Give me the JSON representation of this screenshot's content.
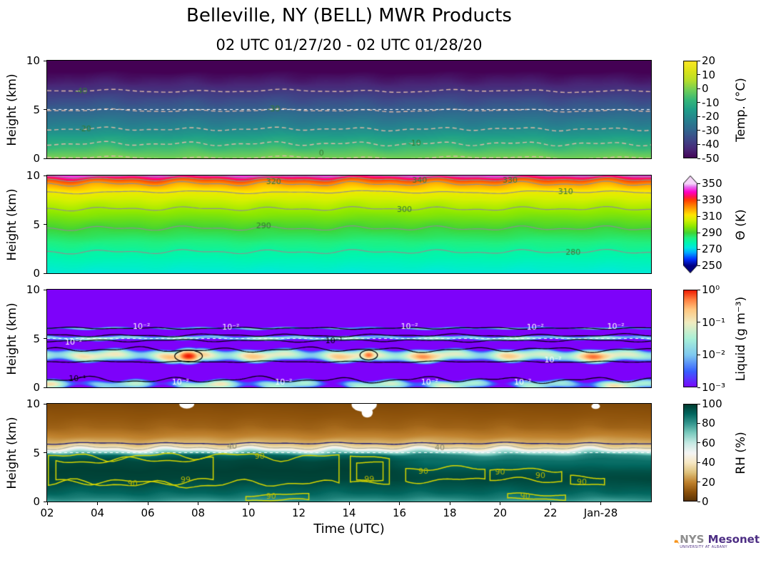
{
  "header": {
    "title": "Belleville, NY (BELL) MWR Products",
    "subtitle": "02 UTC 01/27/20 - 02 UTC 01/28/20"
  },
  "logo": {
    "nys": "NYS",
    "mesonet": "Mesonet",
    "sub": "UNIVERSITY AT ALBANY"
  },
  "chart_data": {
    "type": "heatmap",
    "x_label": "Time (UTC)",
    "x_range_hours": [
      2,
      26
    ],
    "x_ticks": [
      [
        2,
        "02"
      ],
      [
        4,
        "04"
      ],
      [
        6,
        "06"
      ],
      [
        8,
        "08"
      ],
      [
        10,
        "10"
      ],
      [
        12,
        "12"
      ],
      [
        14,
        "14"
      ],
      [
        16,
        "16"
      ],
      [
        18,
        "18"
      ],
      [
        20,
        "20"
      ],
      [
        22,
        "22"
      ],
      [
        24,
        "Jan-28"
      ]
    ],
    "y_label": "Height (km)",
    "y_range_km": [
      0,
      10
    ],
    "y_ticks": [
      [
        0,
        "0"
      ],
      [
        5,
        "5"
      ],
      [
        10,
        "10"
      ]
    ],
    "panels": [
      {
        "id": "temp",
        "kind": "profile",
        "seed": 1.3,
        "profile": [
          [
            0,
            0.5
          ],
          [
            1.5,
            -10
          ],
          [
            3.0,
            -20
          ],
          [
            4.9,
            -30
          ],
          [
            6.9,
            -40
          ],
          [
            8.5,
            -48
          ],
          [
            10,
            -56
          ]
        ],
        "colormap": [
          [
            -50,
            "#440154"
          ],
          [
            -43,
            "#482878"
          ],
          [
            -36,
            "#3e4989"
          ],
          [
            -29,
            "#31688e"
          ],
          [
            -22,
            "#26828e"
          ],
          [
            -15,
            "#1f9e89"
          ],
          [
            -8,
            "#35b779"
          ],
          [
            -1,
            "#6ece58"
          ],
          [
            6,
            "#b5de2b"
          ],
          [
            13,
            "#dce319"
          ],
          [
            20,
            "#fde725"
          ]
        ],
        "contours": {
          "values": [
            0,
            -10,
            -20,
            -30,
            -40
          ],
          "style": "dashed",
          "color": "#ddb8a8",
          "width": 1.4,
          "label_color": "#357a32",
          "labels": [
            {
              "v": -40,
              "t": 3.35
            },
            {
              "v": -30,
              "t": 11.0
            },
            {
              "v": -20,
              "t": 3.5
            },
            {
              "v": -10,
              "t": 16.6
            },
            {
              "v": 0,
              "t": 12.9
            }
          ]
        },
        "dashed5": true,
        "colorbar": {
          "label": "Temp. (°C)",
          "min": -50,
          "max": 20,
          "ticks": [
            [
              20,
              "20"
            ],
            [
              10,
              "10"
            ],
            [
              0,
              "0"
            ],
            [
              -10,
              "-10"
            ],
            [
              -20,
              "-20"
            ],
            [
              -30,
              "-30"
            ],
            [
              -40,
              "-40"
            ],
            [
              -50,
              "-50"
            ]
          ]
        }
      },
      {
        "id": "theta",
        "kind": "profile",
        "seed": 4.1,
        "profile": [
          [
            0,
            273
          ],
          [
            2.2,
            280
          ],
          [
            4.6,
            290
          ],
          [
            6.6,
            300
          ],
          [
            8.3,
            310
          ],
          [
            9.15,
            320
          ],
          [
            9.6,
            330
          ],
          [
            9.95,
            341
          ],
          [
            10,
            343
          ]
        ],
        "colormap": [
          [
            250,
            "#000080"
          ],
          [
            258,
            "#0030ff"
          ],
          [
            266,
            "#00aaff"
          ],
          [
            272,
            "#00e8e0"
          ],
          [
            278,
            "#00f5b0"
          ],
          [
            284,
            "#20f080"
          ],
          [
            290,
            "#3fd435"
          ],
          [
            298,
            "#8ee800"
          ],
          [
            306,
            "#d6f000"
          ],
          [
            312,
            "#ffe400"
          ],
          [
            318,
            "#ffae00"
          ],
          [
            324,
            "#ff7800"
          ],
          [
            330,
            "#ff3c00"
          ],
          [
            334,
            "#ff1450"
          ],
          [
            340,
            "#ff00c8"
          ],
          [
            346,
            "#e86cf0"
          ],
          [
            350,
            "#f5d4f8"
          ]
        ],
        "contours": {
          "values": [
            280,
            290,
            300,
            310,
            320,
            330,
            340
          ],
          "style": "solid",
          "color": "#8f8f8f",
          "width": 1.2,
          "label_color": "#357a32",
          "labels": [
            {
              "v": 280,
              "t": 22.9
            },
            {
              "v": 290,
              "t": 10.6
            },
            {
              "v": 300,
              "t": 16.2
            },
            {
              "v": 310,
              "t": 22.6
            },
            {
              "v": 320,
              "t": 11.0
            },
            {
              "v": 330,
              "t": 20.4
            },
            {
              "v": 340,
              "t": 16.8
            }
          ]
        },
        "dashed5": false,
        "colorbar": {
          "label": "Θ (K)",
          "min": 250,
          "max": 350,
          "extend_top": true,
          "extend_bottom": true,
          "ticks": [
            [
              350,
              "350"
            ],
            [
              330,
              "330"
            ],
            [
              310,
              "310"
            ],
            [
              290,
              "290"
            ],
            [
              270,
              "270"
            ],
            [
              250,
              "250"
            ]
          ]
        }
      },
      {
        "id": "liquid",
        "kind": "liquid",
        "base": -3,
        "bands": [
          {
            "h": 5.05,
            "hw": 0.22,
            "peak": -1.8,
            "seed": 11,
            "pwob": 0.25,
            "hwob": 0.07
          },
          {
            "h": 3.25,
            "hw": 0.5,
            "peak": -1.1,
            "seed": 23,
            "pwob": 0.45,
            "hwob": 0.1
          },
          {
            "h": 0.3,
            "hw": 0.42,
            "peak": -1.8,
            "seed": 37,
            "pwob": 0.6,
            "hwob": 0.1
          },
          {
            "h": 6.05,
            "hw": 0.13,
            "peak": -2.2,
            "seed": 41,
            "pwob": 0.3,
            "hwob": 0.05
          }
        ],
        "blobs": [
          {
            "t": 7.62,
            "h": 3.2,
            "rt": 0.45,
            "rh": 0.55,
            "peak": 0.0
          },
          {
            "t": 14.78,
            "h": 3.3,
            "rt": 0.28,
            "rh": 0.45,
            "peak": -0.25
          }
        ],
        "colormap": [
          [
            -3,
            "#7d02fa"
          ],
          [
            -2.5,
            "#3860ff"
          ],
          [
            -2,
            "#7ec8f0"
          ],
          [
            -1.5,
            "#a8f0d8"
          ],
          [
            -1,
            "#f0ecc0"
          ],
          [
            -0.6,
            "#ffc880"
          ],
          [
            -0.3,
            "#ff8040"
          ],
          [
            0,
            "#f01800"
          ]
        ],
        "lines": [
          {
            "h": 6.05,
            "amp": 0.06,
            "seed": 4.2
          },
          {
            "h": 5.32,
            "amp": 0.09,
            "seed": 5.1
          },
          {
            "h": 4.78,
            "amp": 0.08,
            "seed": 6.3
          },
          {
            "h": 3.86,
            "amp": 0.16,
            "seed": 7.7
          },
          {
            "h": 2.62,
            "amp": 0.05,
            "seed": 8.9
          },
          {
            "h": 0.78,
            "amp": 0.2,
            "seed": 9.4
          }
        ],
        "rings": [
          {
            "t": 7.62,
            "h": 3.2,
            "rt": 0.55,
            "rh": 0.6
          },
          {
            "t": 14.78,
            "h": 3.3,
            "rt": 0.35,
            "rh": 0.5
          }
        ],
        "line_color": "#000000",
        "dashed5": true,
        "labels": [
          {
            "t": 3.05,
            "h": 4.62,
            "text": "10⁻²",
            "color": "#ffffff"
          },
          {
            "t": 5.75,
            "h": 6.18,
            "text": "10⁻²",
            "color": "#ffffff"
          },
          {
            "t": 9.3,
            "h": 6.1,
            "text": "10⁻²",
            "color": "#ffffff"
          },
          {
            "t": 16.4,
            "h": 6.18,
            "text": "10⁻²",
            "color": "#ffffff"
          },
          {
            "t": 21.4,
            "h": 6.1,
            "text": "10⁻²",
            "color": "#ffffff"
          },
          {
            "t": 24.6,
            "h": 6.2,
            "text": "10⁻²",
            "color": "#ffffff"
          },
          {
            "t": 22.1,
            "h": 2.78,
            "text": "10⁻²",
            "color": "#ffffff"
          },
          {
            "t": 3.2,
            "h": 0.88,
            "text": "10⁻¹",
            "color": "#000000"
          },
          {
            "t": 13.4,
            "h": 4.75,
            "text": "10⁻¹",
            "color": "#000000"
          },
          {
            "t": 7.3,
            "h": 0.3,
            "text": "10⁻²",
            "color": "#ffffff"
          },
          {
            "t": 11.4,
            "h": 0.28,
            "text": "10⁻²",
            "color": "#ffffff"
          },
          {
            "t": 17.2,
            "h": 0.3,
            "text": "10⁻²",
            "color": "#ffffff"
          },
          {
            "t": 20.9,
            "h": 0.28,
            "text": "10⁻²",
            "color": "#ffffff"
          }
        ],
        "colorbar": {
          "label": "Liquid (g m⁻³)",
          "min": -3,
          "max": 0,
          "ticks": [
            [
              0,
              "10⁰"
            ],
            [
              -1,
              "10⁻¹"
            ],
            [
              -2,
              "10⁻²"
            ],
            [
              -3,
              "10⁻³"
            ]
          ]
        }
      },
      {
        "id": "rh",
        "kind": "profile",
        "seed": 7.7,
        "profile": [
          [
            0,
            78
          ],
          [
            0.4,
            85
          ],
          [
            0.9,
            90
          ],
          [
            1.6,
            94
          ],
          [
            2.3,
            98
          ],
          [
            3.2,
            99
          ],
          [
            4.2,
            97
          ],
          [
            4.7,
            90
          ],
          [
            5.05,
            68
          ],
          [
            5.45,
            42
          ],
          [
            5.9,
            30
          ],
          [
            6.6,
            21
          ],
          [
            7.6,
            14
          ],
          [
            8.6,
            11
          ],
          [
            10,
            8
          ]
        ],
        "mods": [
          {
            "t0": 15.3,
            "t1": 17.0,
            "k": -9,
            "h": 4.1,
            "hw": 1.2
          }
        ],
        "colormap": [
          [
            0,
            "#543005"
          ],
          [
            10,
            "#8c510a"
          ],
          [
            20,
            "#bf812d"
          ],
          [
            30,
            "#dfc27d"
          ],
          [
            40,
            "#f6e8c3"
          ],
          [
            50,
            "#f5f5f5"
          ],
          [
            60,
            "#c7eae5"
          ],
          [
            70,
            "#80cdc1"
          ],
          [
            80,
            "#35978f"
          ],
          [
            90,
            "#01665e"
          ],
          [
            100,
            "#003c30"
          ]
        ],
        "navy_line": {
          "h": 5.95,
          "amp": 0.06,
          "color": "#1c1c78"
        },
        "gray40": {
          "value": 40,
          "color": "#b0b0a0"
        },
        "dashed5": true,
        "loops": [
          {
            "t0": 2.05,
            "t1": 13.6,
            "htop": 4.62,
            "hbot": 1.8,
            "amp": 0.28,
            "seed": 1
          },
          {
            "t0": 2.35,
            "t1": 8.6,
            "htop": 4.2,
            "hbot": 2.05,
            "amp": 0.22,
            "seed": 2
          },
          {
            "t0": 14.05,
            "t1": 15.6,
            "htop": 4.55,
            "hbot": 1.9,
            "amp": 0.12,
            "seed": 3
          },
          {
            "t0": 14.3,
            "t1": 15.35,
            "htop": 4.1,
            "hbot": 2.2,
            "amp": 0.1,
            "seed": 4
          },
          {
            "t0": 16.25,
            "t1": 19.4,
            "htop": 3.35,
            "hbot": 2.2,
            "amp": 0.18,
            "seed": 5
          },
          {
            "t0": 19.6,
            "t1": 22.45,
            "htop": 3.25,
            "hbot": 2.2,
            "amp": 0.18,
            "seed": 6
          },
          {
            "t0": 22.8,
            "t1": 24.15,
            "htop": 2.45,
            "hbot": 1.7,
            "amp": 0.12,
            "seed": 7
          },
          {
            "t0": 9.9,
            "t1": 12.4,
            "htop": 0.68,
            "hbot": 0.18,
            "amp": 0.1,
            "seed": 8
          },
          {
            "t0": 20.3,
            "t1": 22.6,
            "htop": 0.72,
            "hbot": 0.22,
            "amp": 0.1,
            "seed": 9
          }
        ],
        "loop_color": "#d6d600",
        "white_blobs": [
          {
            "t": 7.55,
            "h": 10.0,
            "rt": 0.3,
            "rh": 0.5
          },
          {
            "t": 14.6,
            "h": 9.9,
            "rt": 0.5,
            "rh": 0.7
          },
          {
            "t": 14.72,
            "h": 9.1,
            "rt": 0.22,
            "rh": 0.5
          },
          {
            "t": 23.8,
            "h": 9.75,
            "rt": 0.17,
            "rh": 0.28
          }
        ],
        "labels": [
          {
            "t": 9.35,
            "h": 5.58,
            "text": "40",
            "color": "#8c8c6e"
          },
          {
            "t": 17.6,
            "h": 5.5,
            "text": "40",
            "color": "#8c8c6e"
          },
          {
            "t": 5.4,
            "h": 1.78,
            "text": "90",
            "color": "#b8b800"
          },
          {
            "t": 10.45,
            "h": 4.6,
            "text": "90",
            "color": "#b8b800"
          },
          {
            "t": 7.5,
            "h": 2.15,
            "text": "99",
            "color": "#b8b800"
          },
          {
            "t": 14.8,
            "h": 2.25,
            "text": "99",
            "color": "#b8b800"
          },
          {
            "t": 16.95,
            "h": 3.05,
            "text": "90",
            "color": "#b8b800"
          },
          {
            "t": 20.0,
            "h": 2.95,
            "text": "90",
            "color": "#b8b800"
          },
          {
            "t": 21.6,
            "h": 2.65,
            "text": "90",
            "color": "#b8b800"
          },
          {
            "t": 23.25,
            "h": 1.95,
            "text": "90",
            "color": "#b8b800"
          },
          {
            "t": 10.9,
            "h": 0.42,
            "text": "90",
            "color": "#b8b800"
          },
          {
            "t": 21.0,
            "h": 0.5,
            "text": "90",
            "color": "#b8b800"
          }
        ],
        "colorbar": {
          "label": "RH (%)",
          "min": 0,
          "max": 100,
          "ticks": [
            [
              100,
              "100"
            ],
            [
              80,
              "80"
            ],
            [
              60,
              "60"
            ],
            [
              40,
              "40"
            ],
            [
              20,
              "20"
            ],
            [
              0,
              "0"
            ]
          ]
        }
      }
    ]
  }
}
